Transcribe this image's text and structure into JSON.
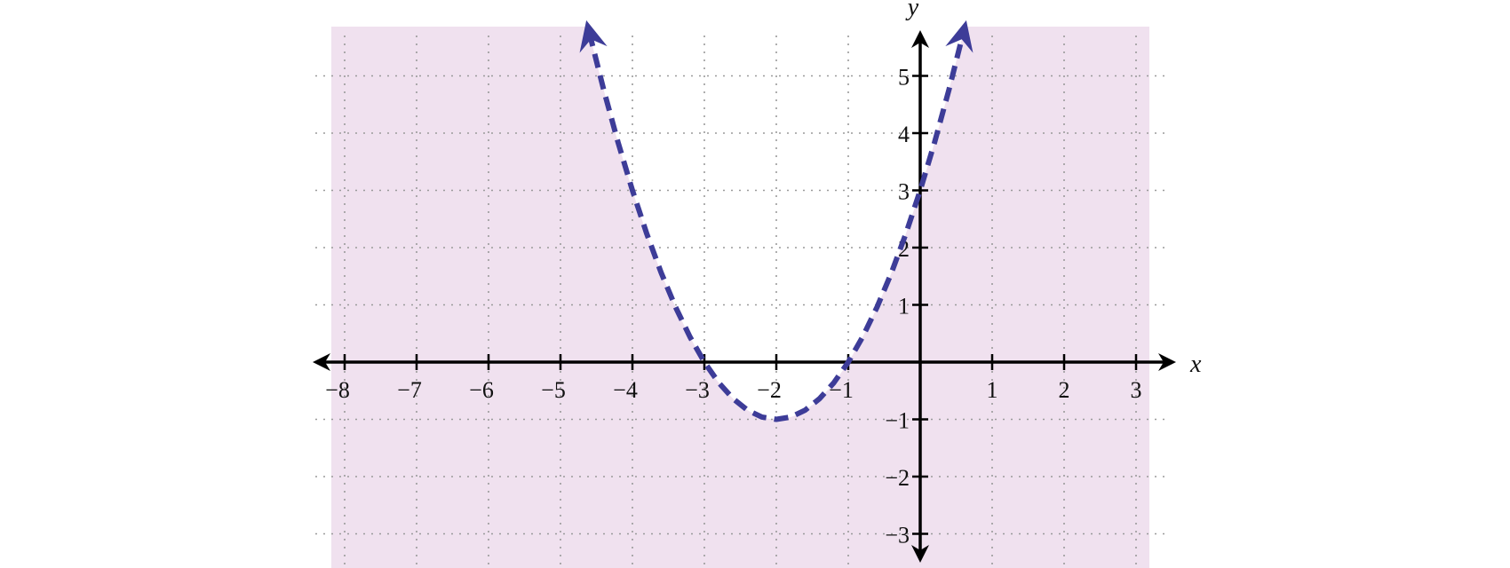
{
  "chart_data": {
    "type": "line",
    "xlabel": "x",
    "ylabel": "y",
    "xlim": [
      -8.2,
      3.2
    ],
    "ylim": [
      -3.6,
      5.8
    ],
    "x_ticks": [
      -8,
      -7,
      -6,
      -5,
      -4,
      -3,
      -2,
      -1,
      1,
      2,
      3
    ],
    "x_tick_labels": [
      "−8",
      "−7",
      "−6",
      "−5",
      "−4",
      "−3",
      "−2",
      "−1",
      "1",
      "2",
      "3"
    ],
    "y_ticks": [
      -3,
      -2,
      -1,
      1,
      2,
      3,
      4,
      5
    ],
    "y_tick_labels": [
      "−3",
      "−2",
      "−1",
      "1",
      "2",
      "3",
      "4",
      "5"
    ],
    "grid": true,
    "grid_style": "dotted",
    "series": [
      {
        "equation_form": "y = (x + 2)^2 - 1",
        "x": [
          -4.6,
          -4.4,
          -4.2,
          -4,
          -3.8,
          -3.6,
          -3.4,
          -3.2,
          -3,
          -2.8,
          -2.6,
          -2.4,
          -2.2,
          -2,
          -1.8,
          -1.6,
          -1.4,
          -1.2,
          -1,
          -0.8,
          -0.6,
          -0.4,
          -0.2,
          0,
          0.2,
          0.4,
          0.6
        ],
        "y": [
          5.76,
          4.76,
          3.84,
          3.0,
          2.24,
          1.56,
          0.96,
          0.44,
          0.0,
          -0.36,
          -0.64,
          -0.84,
          -0.96,
          -1.0,
          -0.96,
          -0.84,
          -0.64,
          -0.36,
          0.0,
          0.44,
          0.96,
          1.56,
          2.24,
          3.0,
          3.84,
          4.76,
          5.76
        ],
        "line_style": "dashed",
        "color": "#3d3c98",
        "arrows_at_ends": true
      }
    ],
    "shaded_region": {
      "description": "outside the parabola (below/around the curve), excluding the region above the curve",
      "inequality": "y < (x + 2)^2 - 1",
      "color": "#f0e1ef"
    }
  }
}
